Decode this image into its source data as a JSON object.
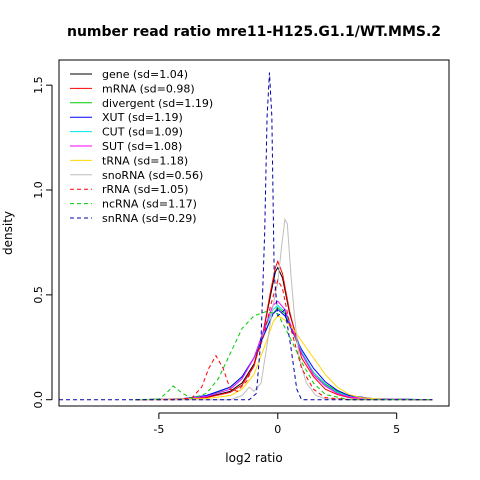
{
  "chart_data": {
    "type": "line",
    "title": "number read ratio mre11-H125.G1.1/WT.MMS.2",
    "xlabel": "log2 ratio",
    "ylabel": "density",
    "xlim": [
      -9.2,
      7.2
    ],
    "ylim": [
      -0.03,
      1.62
    ],
    "xticks": [
      -5,
      0,
      5
    ],
    "yticks": [
      0.0,
      0.5,
      1.0,
      1.5
    ],
    "xtick_labels": [
      "-5",
      "0",
      "5"
    ],
    "ytick_labels": [
      "0.0",
      "0.5",
      "1.0",
      "1.5"
    ],
    "legend_position": "top-left",
    "grid": false,
    "series": [
      {
        "name": "gene (sd=1.04)",
        "color": "#000000",
        "dash": "solid",
        "points": [
          [
            -6.0,
            0.0
          ],
          [
            -4.0,
            0.003
          ],
          [
            -3.0,
            0.012
          ],
          [
            -2.0,
            0.04
          ],
          [
            -1.5,
            0.08
          ],
          [
            -1.0,
            0.17
          ],
          [
            -0.6,
            0.33
          ],
          [
            -0.3,
            0.5
          ],
          [
            -0.1,
            0.61
          ],
          [
            0.0,
            0.63
          ],
          [
            0.2,
            0.58
          ],
          [
            0.5,
            0.41
          ],
          [
            1.0,
            0.22
          ],
          [
            1.5,
            0.13
          ],
          [
            2.0,
            0.07
          ],
          [
            2.5,
            0.035
          ],
          [
            3.0,
            0.015
          ],
          [
            4.0,
            0.003
          ],
          [
            6.5,
            0.0
          ]
        ]
      },
      {
        "name": "mRNA (sd=0.98)",
        "color": "#ff0000",
        "dash": "solid",
        "points": [
          [
            -6.0,
            0.0
          ],
          [
            -4.0,
            0.003
          ],
          [
            -3.0,
            0.01
          ],
          [
            -2.0,
            0.035
          ],
          [
            -1.5,
            0.07
          ],
          [
            -1.0,
            0.16
          ],
          [
            -0.6,
            0.33
          ],
          [
            -0.3,
            0.52
          ],
          [
            -0.1,
            0.63
          ],
          [
            0.0,
            0.66
          ],
          [
            0.2,
            0.6
          ],
          [
            0.5,
            0.42
          ],
          [
            1.0,
            0.2
          ],
          [
            1.5,
            0.11
          ],
          [
            2.0,
            0.05
          ],
          [
            2.5,
            0.025
          ],
          [
            3.0,
            0.01
          ],
          [
            4.0,
            0.002
          ],
          [
            6.5,
            0.0
          ]
        ]
      },
      {
        "name": "divergent (sd=1.19)",
        "color": "#00cc00",
        "dash": "solid",
        "points": [
          [
            -6.0,
            0.0
          ],
          [
            -4.0,
            0.004
          ],
          [
            -3.0,
            0.015
          ],
          [
            -2.0,
            0.06
          ],
          [
            -1.5,
            0.11
          ],
          [
            -1.0,
            0.2
          ],
          [
            -0.5,
            0.33
          ],
          [
            -0.2,
            0.41
          ],
          [
            0.0,
            0.44
          ],
          [
            0.3,
            0.41
          ],
          [
            0.6,
            0.33
          ],
          [
            1.0,
            0.22
          ],
          [
            1.5,
            0.13
          ],
          [
            2.0,
            0.075
          ],
          [
            2.5,
            0.04
          ],
          [
            3.0,
            0.02
          ],
          [
            4.0,
            0.004
          ],
          [
            6.5,
            0.0
          ]
        ]
      },
      {
        "name": "XUT (sd=1.19)",
        "color": "#0000ff",
        "dash": "solid",
        "points": [
          [
            -6.0,
            0.0
          ],
          [
            -4.0,
            0.005
          ],
          [
            -3.0,
            0.02
          ],
          [
            -2.0,
            0.06
          ],
          [
            -1.5,
            0.11
          ],
          [
            -1.0,
            0.2
          ],
          [
            -0.5,
            0.33
          ],
          [
            -0.2,
            0.41
          ],
          [
            0.0,
            0.43
          ],
          [
            0.3,
            0.4
          ],
          [
            0.6,
            0.33
          ],
          [
            1.0,
            0.24
          ],
          [
            1.5,
            0.15
          ],
          [
            2.0,
            0.085
          ],
          [
            2.5,
            0.045
          ],
          [
            3.0,
            0.02
          ],
          [
            4.0,
            0.005
          ],
          [
            6.5,
            0.0
          ]
        ]
      },
      {
        "name": "CUT (sd=1.09)",
        "color": "#00e5e5",
        "dash": "solid",
        "points": [
          [
            -6.0,
            0.0
          ],
          [
            -4.0,
            0.004
          ],
          [
            -3.0,
            0.015
          ],
          [
            -2.0,
            0.05
          ],
          [
            -1.5,
            0.1
          ],
          [
            -1.0,
            0.2
          ],
          [
            -0.5,
            0.35
          ],
          [
            -0.2,
            0.43
          ],
          [
            0.0,
            0.45
          ],
          [
            0.3,
            0.42
          ],
          [
            0.6,
            0.34
          ],
          [
            1.0,
            0.23
          ],
          [
            1.5,
            0.13
          ],
          [
            2.0,
            0.07
          ],
          [
            2.5,
            0.035
          ],
          [
            3.0,
            0.015
          ],
          [
            4.0,
            0.003
          ],
          [
            6.5,
            0.0
          ]
        ]
      },
      {
        "name": "SUT (sd=1.08)",
        "color": "#ff00ff",
        "dash": "solid",
        "points": [
          [
            -6.0,
            0.0
          ],
          [
            -4.0,
            0.004
          ],
          [
            -3.0,
            0.015
          ],
          [
            -2.0,
            0.05
          ],
          [
            -1.5,
            0.1
          ],
          [
            -1.0,
            0.2
          ],
          [
            -0.5,
            0.36
          ],
          [
            -0.2,
            0.45
          ],
          [
            0.0,
            0.47
          ],
          [
            0.3,
            0.43
          ],
          [
            0.6,
            0.34
          ],
          [
            1.0,
            0.22
          ],
          [
            1.5,
            0.12
          ],
          [
            2.0,
            0.065
          ],
          [
            2.5,
            0.03
          ],
          [
            3.0,
            0.013
          ],
          [
            4.0,
            0.003
          ],
          [
            6.5,
            0.0
          ]
        ]
      },
      {
        "name": "tRNA (sd=1.18)",
        "color": "#ffd700",
        "dash": "solid",
        "points": [
          [
            -6.0,
            0.0
          ],
          [
            -3.0,
            0.005
          ],
          [
            -2.0,
            0.02
          ],
          [
            -1.5,
            0.05
          ],
          [
            -1.0,
            0.12
          ],
          [
            -0.5,
            0.27
          ],
          [
            -0.2,
            0.37
          ],
          [
            0.0,
            0.4
          ],
          [
            0.3,
            0.38
          ],
          [
            0.7,
            0.33
          ],
          [
            1.0,
            0.28
          ],
          [
            1.5,
            0.2
          ],
          [
            2.0,
            0.12
          ],
          [
            2.5,
            0.06
          ],
          [
            3.0,
            0.025
          ],
          [
            3.5,
            0.01
          ],
          [
            4.5,
            0.002
          ],
          [
            6.5,
            0.0
          ]
        ]
      },
      {
        "name": "snoRNA (sd=0.56)",
        "color": "#bebebe",
        "dash": "solid",
        "points": [
          [
            -6.0,
            0.0
          ],
          [
            -2.0,
            0.0
          ],
          [
            -1.5,
            0.02
          ],
          [
            -1.2,
            0.06
          ],
          [
            -1.0,
            0.04
          ],
          [
            -0.7,
            0.08
          ],
          [
            -0.4,
            0.3
          ],
          [
            -0.2,
            0.45
          ],
          [
            0.0,
            0.56
          ],
          [
            0.15,
            0.72
          ],
          [
            0.3,
            0.86
          ],
          [
            0.4,
            0.84
          ],
          [
            0.55,
            0.6
          ],
          [
            0.7,
            0.4
          ],
          [
            0.9,
            0.2
          ],
          [
            1.2,
            0.08
          ],
          [
            1.6,
            0.02
          ],
          [
            2.0,
            0.004
          ],
          [
            6.5,
            0.0
          ]
        ]
      },
      {
        "name": "rRNA (sd=1.05)",
        "color": "#ff0000",
        "dash": "dashed",
        "points": [
          [
            -6.0,
            0.0
          ],
          [
            -4.2,
            0.0
          ],
          [
            -3.6,
            0.01
          ],
          [
            -3.2,
            0.06
          ],
          [
            -2.9,
            0.15
          ],
          [
            -2.6,
            0.21
          ],
          [
            -2.3,
            0.15
          ],
          [
            -2.0,
            0.05
          ],
          [
            -1.7,
            0.04
          ],
          [
            -1.3,
            0.09
          ],
          [
            -1.0,
            0.17
          ],
          [
            -0.6,
            0.3
          ],
          [
            -0.3,
            0.45
          ],
          [
            0.0,
            0.57
          ],
          [
            0.2,
            0.53
          ],
          [
            0.5,
            0.36
          ],
          [
            1.0,
            0.15
          ],
          [
            1.5,
            0.05
          ],
          [
            2.0,
            0.01
          ],
          [
            3.0,
            0.0
          ],
          [
            6.5,
            0.0
          ]
        ]
      },
      {
        "name": "ncRNA (sd=1.17)",
        "color": "#00cc00",
        "dash": "dashed",
        "points": [
          [
            -6.0,
            0.0
          ],
          [
            -5.0,
            0.003
          ],
          [
            -4.7,
            0.03
          ],
          [
            -4.4,
            0.065
          ],
          [
            -4.0,
            0.03
          ],
          [
            -3.6,
            0.006
          ],
          [
            -3.0,
            0.03
          ],
          [
            -2.5,
            0.1
          ],
          [
            -2.0,
            0.22
          ],
          [
            -1.5,
            0.34
          ],
          [
            -1.0,
            0.4
          ],
          [
            -0.5,
            0.42
          ],
          [
            0.0,
            0.41
          ],
          [
            0.5,
            0.3
          ],
          [
            1.0,
            0.18
          ],
          [
            1.5,
            0.08
          ],
          [
            2.0,
            0.025
          ],
          [
            3.0,
            0.0
          ],
          [
            6.5,
            0.0
          ]
        ]
      },
      {
        "name": "snRNA (sd=0.29)",
        "color": "#0000aa",
        "dash": "dashed",
        "points": [
          [
            -9.2,
            0.0
          ],
          [
            -1.2,
            0.0
          ],
          [
            -0.9,
            0.03
          ],
          [
            -0.7,
            0.3
          ],
          [
            -0.55,
            0.8
          ],
          [
            -0.45,
            1.35
          ],
          [
            -0.35,
            1.56
          ],
          [
            -0.25,
            1.35
          ],
          [
            -0.15,
            0.6
          ],
          [
            0.0,
            0.4
          ],
          [
            0.3,
            0.43
          ],
          [
            0.55,
            0.25
          ],
          [
            0.8,
            0.05
          ],
          [
            1.0,
            0.0
          ],
          [
            6.5,
            0.0
          ]
        ]
      }
    ]
  }
}
